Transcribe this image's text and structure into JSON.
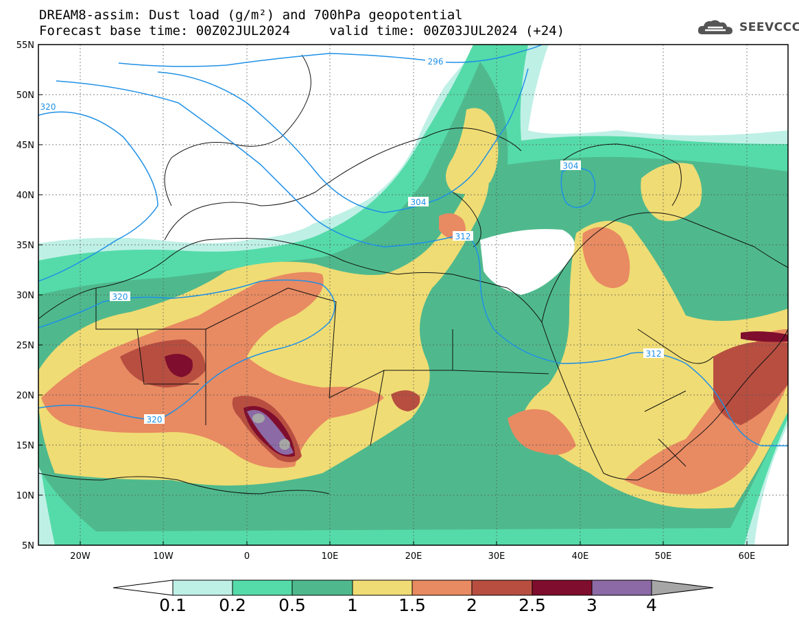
{
  "header": {
    "title": "DREAM8-assim: Dust load (g/m²) and 700hPa geopotential",
    "base_time": "Forecast base time: 00Z02JUL2024",
    "valid_time": "valid time: 00Z03JUL2024 (+24)"
  },
  "logo": {
    "text": "SEEVCCC",
    "icon": "cloud-icon"
  },
  "map": {
    "extent": {
      "lon": [
        -25,
        65
      ],
      "lat": [
        5,
        55
      ]
    },
    "lat_ticks": [
      "55N",
      "50N",
      "45N",
      "40N",
      "35N",
      "30N",
      "25N",
      "20N",
      "15N",
      "10N",
      "5N"
    ],
    "lon_ticks": [
      "20W",
      "10W",
      "0",
      "10E",
      "20E",
      "30E",
      "40E",
      "50E",
      "60E"
    ],
    "gridlines": "dotted"
  },
  "contours": {
    "variable": "700hPa geopotential",
    "color": "#1e90e6",
    "labels": [
      "296",
      "304",
      "312",
      "320"
    ]
  },
  "colorbar": {
    "levels": [
      "0.1",
      "0.2",
      "0.5",
      "1",
      "1.5",
      "2",
      "2.5",
      "3",
      "4"
    ],
    "colors": [
      "#ffffff",
      "#bff0e6",
      "#55dba9",
      "#4fb98d",
      "#f0dc74",
      "#e88a62",
      "#b74e40",
      "#7f0d2d",
      "#8b6aa5",
      "#a6a6a6"
    ]
  },
  "chart_data": {
    "type": "heatmap",
    "title": "DREAM8-assim: Dust load (g/m²) and 700hPa geopotential",
    "units": "g/m²",
    "xlim": [
      -25,
      65
    ],
    "ylim": [
      5,
      55
    ],
    "levels": [
      0.1,
      0.2,
      0.5,
      1,
      1.5,
      2,
      2.5,
      3,
      4
    ],
    "contour_labels": [
      296,
      304,
      312,
      320
    ]
  }
}
